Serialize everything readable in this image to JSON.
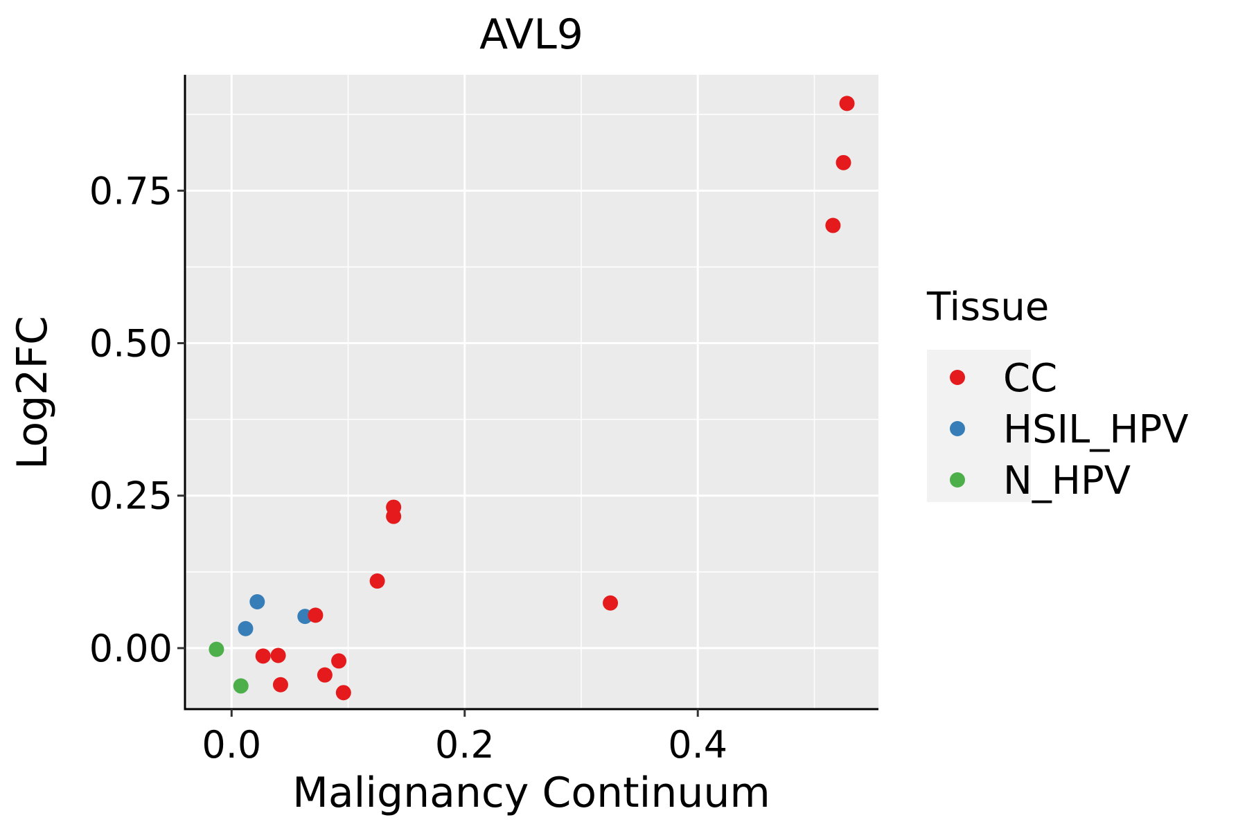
{
  "chart_data": {
    "type": "scatter",
    "title": "AVL9",
    "xlabel": "Malignancy Continuum",
    "ylabel": "Log2FC",
    "xlim": [
      -0.04,
      0.555
    ],
    "ylim": [
      -0.1,
      0.94
    ],
    "x_ticks": [
      0.0,
      0.2,
      0.4
    ],
    "x_tick_labels": [
      "0.0",
      "0.2",
      "0.4"
    ],
    "y_ticks": [
      0.0,
      0.25,
      0.5,
      0.75
    ],
    "y_tick_labels": [
      "0.00",
      "0.25",
      "0.50",
      "0.75"
    ],
    "grid": true,
    "legend": {
      "title": "Tissue",
      "position": "right",
      "entries": [
        {
          "label": "CC",
          "color": "#E41A1C"
        },
        {
          "label": "HSIL_HPV",
          "color": "#377EB8"
        },
        {
          "label": "N_HPV",
          "color": "#4DAF4A"
        }
      ]
    },
    "series": [
      {
        "name": "N_HPV",
        "color": "#4DAF4A",
        "points": [
          {
            "x": -0.013,
            "y": -0.002
          },
          {
            "x": 0.008,
            "y": -0.062
          }
        ]
      },
      {
        "name": "HSIL_HPV",
        "color": "#377EB8",
        "points": [
          {
            "x": 0.012,
            "y": 0.032
          },
          {
            "x": 0.022,
            "y": 0.076
          },
          {
            "x": 0.063,
            "y": 0.052
          }
        ]
      },
      {
        "name": "CC",
        "color": "#E41A1C",
        "points": [
          {
            "x": 0.027,
            "y": -0.013
          },
          {
            "x": 0.04,
            "y": -0.012
          },
          {
            "x": 0.042,
            "y": -0.06
          },
          {
            "x": 0.072,
            "y": 0.054
          },
          {
            "x": 0.08,
            "y": -0.044
          },
          {
            "x": 0.092,
            "y": -0.021
          },
          {
            "x": 0.096,
            "y": -0.073
          },
          {
            "x": 0.125,
            "y": 0.11
          },
          {
            "x": 0.139,
            "y": 0.231
          },
          {
            "x": 0.139,
            "y": 0.216
          },
          {
            "x": 0.325,
            "y": 0.074
          },
          {
            "x": 0.516,
            "y": 0.693
          },
          {
            "x": 0.525,
            "y": 0.796
          },
          {
            "x": 0.528,
            "y": 0.893
          }
        ]
      }
    ]
  }
}
